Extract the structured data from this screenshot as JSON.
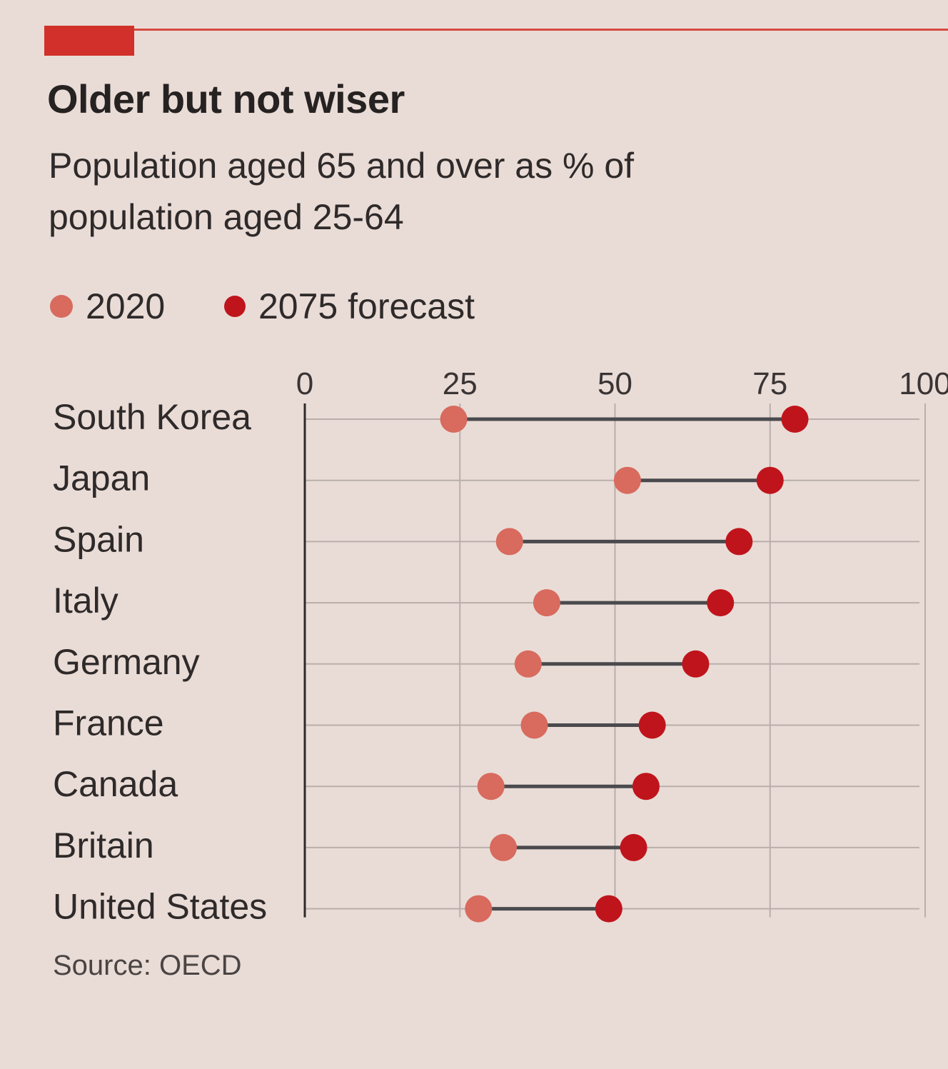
{
  "header": {
    "title": "Older but not wiser",
    "subtitle": "Population aged 65 and over as % of population aged 25-64"
  },
  "legend": [
    {
      "label": "2020",
      "color": "#d86a5e"
    },
    {
      "label": "2075 forecast",
      "color": "#c0141c"
    }
  ],
  "source": "Source: OECD",
  "colors": {
    "accent": "#d2302a",
    "connector": "#4a4a4e",
    "grid": "#b9aeab"
  },
  "chart_data": {
    "type": "dumbbell",
    "title": "Older but not wiser",
    "subtitle": "Population aged 65 and over as % of population aged 25-64",
    "xlim": [
      0,
      100
    ],
    "xticks": [
      "0",
      "25",
      "50",
      "75",
      "100"
    ],
    "grid": true,
    "legend_position": "top-left",
    "categories": [
      "South Korea",
      "Japan",
      "Spain",
      "Italy",
      "Germany",
      "France",
      "Canada",
      "Britain",
      "United States"
    ],
    "series": [
      {
        "name": "2020",
        "color": "#d86a5e",
        "values": [
          24,
          52,
          33,
          39,
          36,
          37,
          30,
          32,
          28
        ]
      },
      {
        "name": "2075 forecast",
        "color": "#c0141c",
        "values": [
          79,
          75,
          70,
          67,
          63,
          56,
          55,
          53,
          49
        ]
      }
    ]
  }
}
